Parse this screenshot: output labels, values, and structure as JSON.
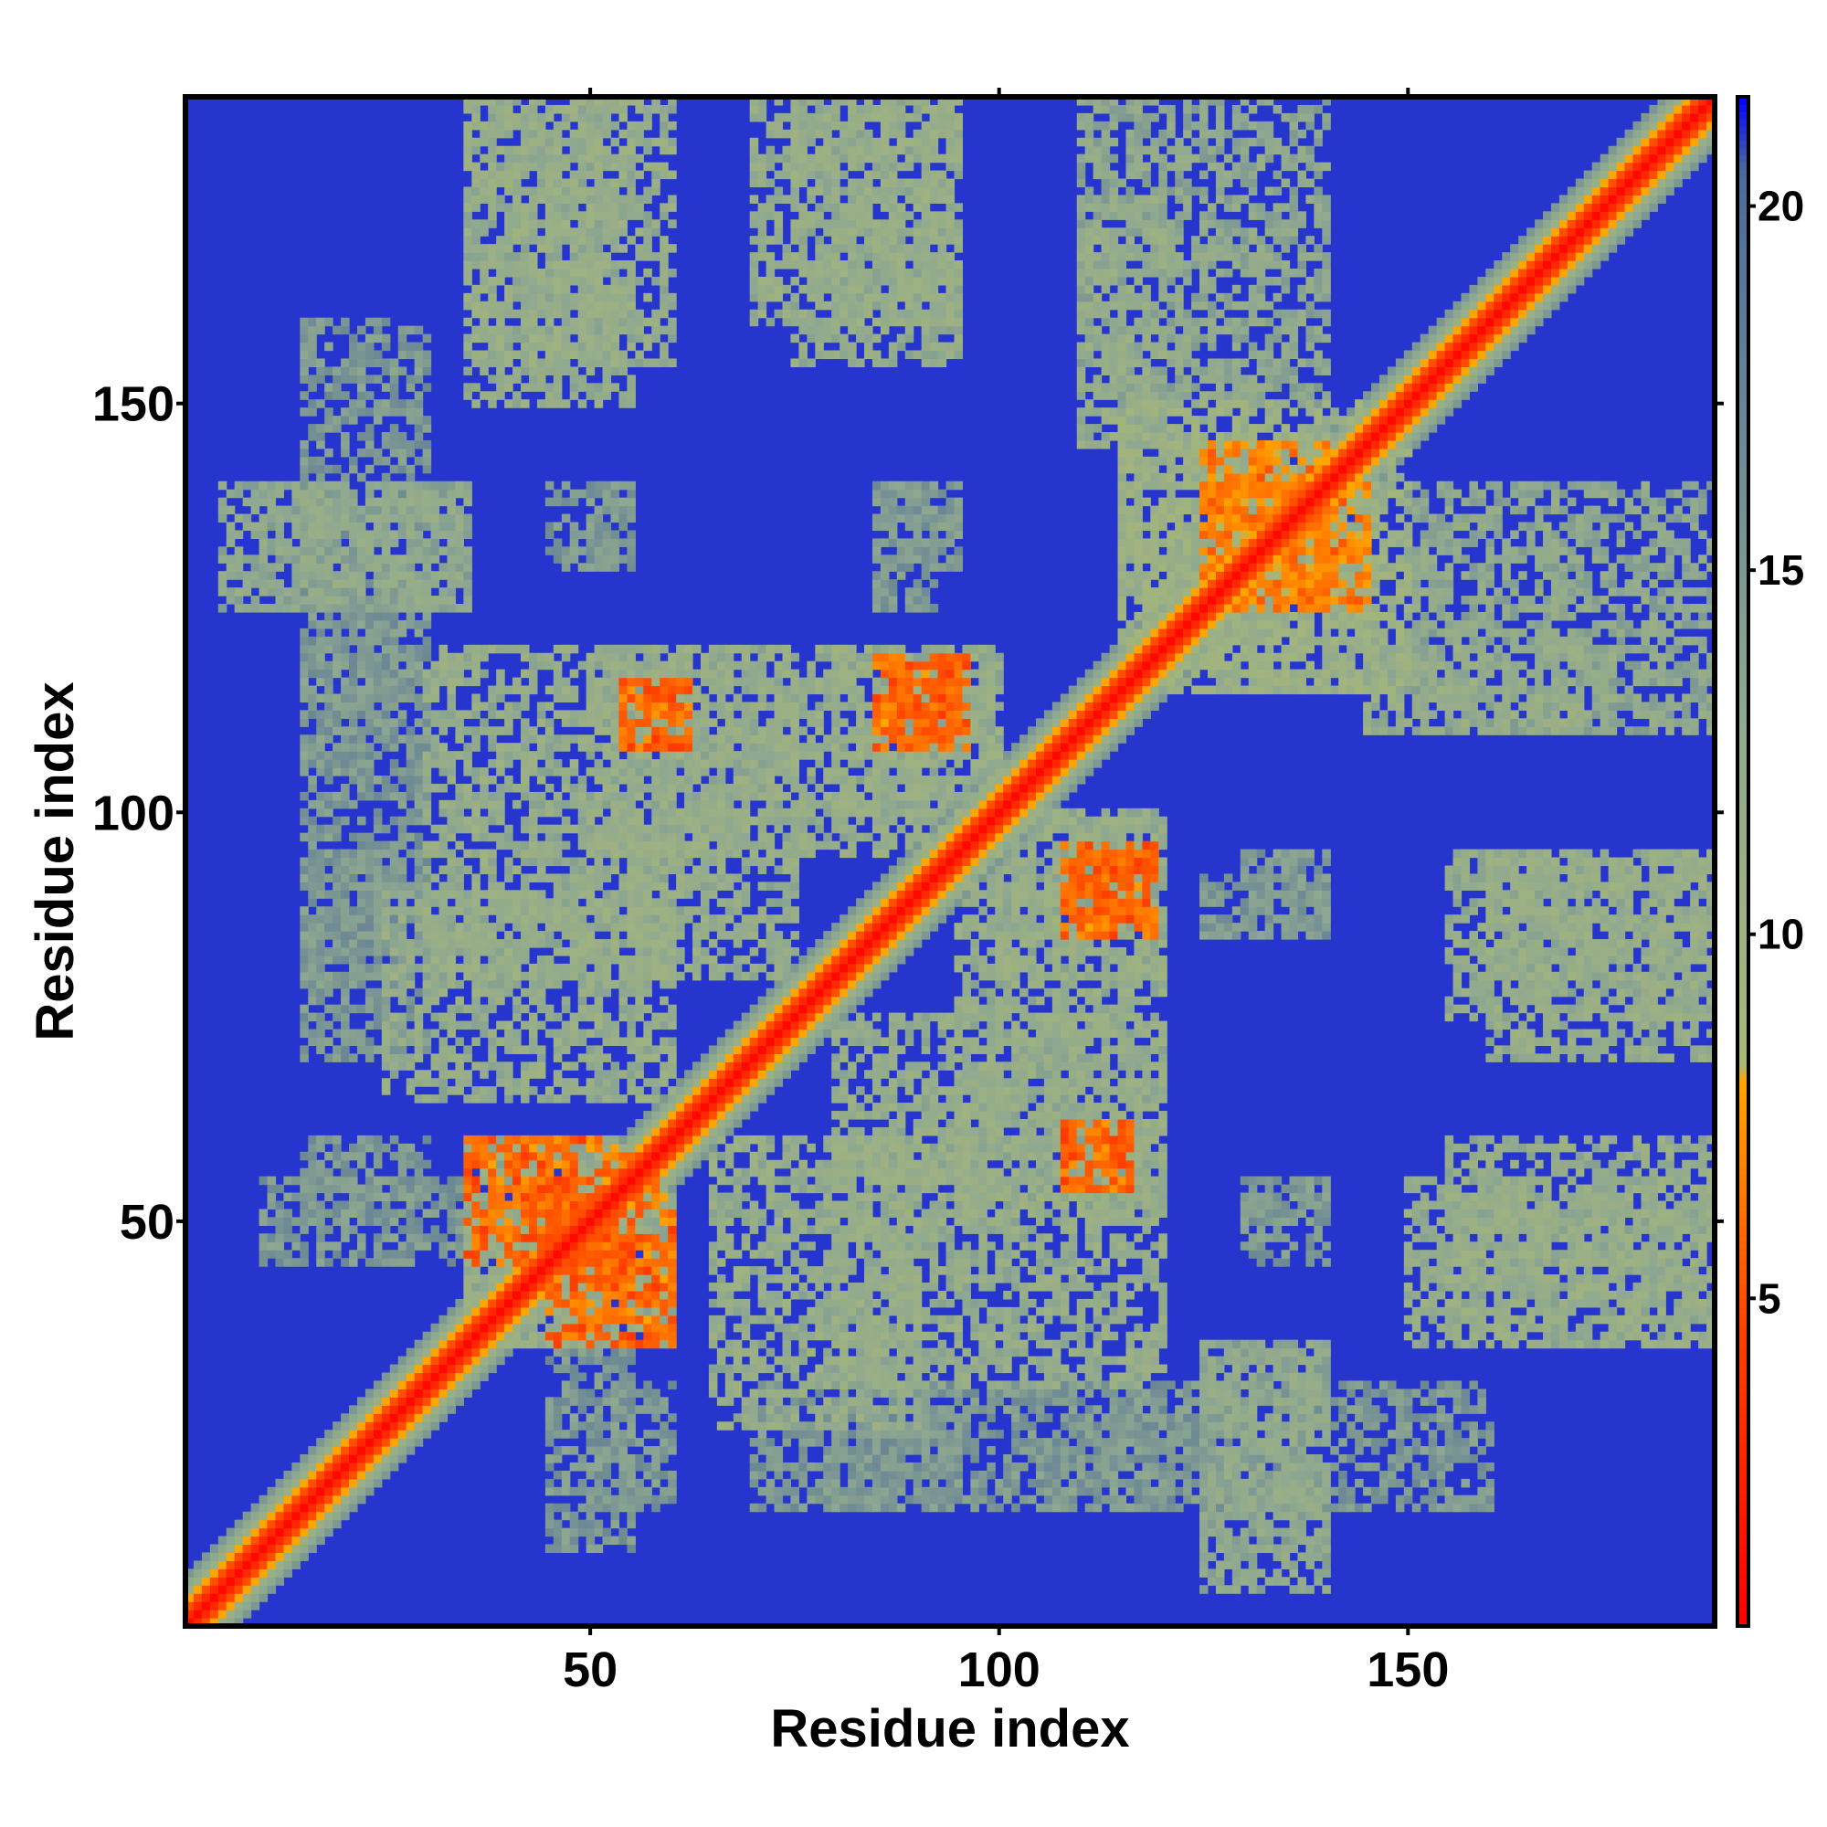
{
  "chart_data": {
    "type": "heatmap",
    "title": "",
    "xlabel": "Residue index",
    "ylabel": "Residue index",
    "n_residues": 187,
    "xlim": [
      1,
      187
    ],
    "ylim": [
      1,
      187
    ],
    "x_ticks": [
      50,
      100,
      150
    ],
    "y_ticks": [
      50,
      100,
      150
    ],
    "colorbar": {
      "range": [
        0.5,
        21.5
      ],
      "ticks": [
        5,
        10,
        15,
        20
      ],
      "colorscale": [
        {
          "value": 0.5,
          "color": "#ff0000"
        },
        {
          "value": 4.5,
          "color": "#ff4000"
        },
        {
          "value": 8.0,
          "color": "#ffa500"
        },
        {
          "value": 8.2,
          "color": "#a8b878"
        },
        {
          "value": 13.0,
          "color": "#8fa890"
        },
        {
          "value": 20.5,
          "color": "#4a6a9a"
        },
        {
          "value": 21.5,
          "color": "#0000ff"
        }
      ]
    },
    "background_value": 21,
    "diagonal_band_values": [
      {
        "offset": 0,
        "value": 1
      },
      {
        "offset": 1,
        "value": 3
      },
      {
        "offset": 2,
        "value": 5
      },
      {
        "offset": 3,
        "value": 8
      },
      {
        "offset": 4,
        "value": 11
      },
      {
        "offset": 5,
        "value": 13
      },
      {
        "offset": 6,
        "value": 15
      }
    ],
    "contact_regions": [
      {
        "x": [
          35,
          60
        ],
        "y": [
          35,
          60
        ],
        "value": 12
      },
      {
        "x": [
          40,
          55
        ],
        "y": [
          45,
          60
        ],
        "value": 6
      },
      {
        "x": [
          45,
          60
        ],
        "y": [
          35,
          48
        ],
        "value": 6
      },
      {
        "x": [
          55,
          75
        ],
        "y": [
          80,
          120
        ],
        "value": 12
      },
      {
        "x": [
          54,
          62
        ],
        "y": [
          108,
          116
        ],
        "value": 6
      },
      {
        "x": [
          86,
          96
        ],
        "y": [
          108,
          118
        ],
        "value": 6
      },
      {
        "x": [
          75,
          100
        ],
        "y": [
          95,
          120
        ],
        "value": 12
      },
      {
        "x": [
          100,
          120
        ],
        "y": [
          80,
          100
        ],
        "value": 12
      },
      {
        "x": [
          108,
          119
        ],
        "y": [
          85,
          96
        ],
        "value": 6
      },
      {
        "x": [
          108,
          116
        ],
        "y": [
          54,
          62
        ],
        "value": 6
      },
      {
        "x": [
          95,
          120
        ],
        "y": [
          50,
          75
        ],
        "value": 12
      },
      {
        "x": [
          65,
          90
        ],
        "y": [
          25,
          60
        ],
        "value": 12
      },
      {
        "x": [
          30,
          60
        ],
        "y": [
          80,
          120
        ],
        "value": 12
      },
      {
        "x": [
          5,
          35
        ],
        "y": [
          125,
          140
        ],
        "value": 13
      },
      {
        "x": [
          15,
          30
        ],
        "y": [
          80,
          120
        ],
        "value": 15
      },
      {
        "x": [
          35,
          60
        ],
        "y": [
          155,
          187
        ],
        "value": 12
      },
      {
        "x": [
          70,
          95
        ],
        "y": [
          160,
          187
        ],
        "value": 12
      },
      {
        "x": [
          110,
          140
        ],
        "y": [
          150,
          187
        ],
        "value": 13
      },
      {
        "x": [
          115,
          145
        ],
        "y": [
          115,
          150
        ],
        "value": 11
      },
      {
        "x": [
          125,
          145
        ],
        "y": [
          125,
          140
        ],
        "value": 7
      },
      {
        "x": [
          145,
          175
        ],
        "y": [
          110,
          120
        ],
        "value": 12
      },
      {
        "x": [
          155,
          187
        ],
        "y": [
          75,
          95
        ],
        "value": 12
      },
      {
        "x": [
          150,
          187
        ],
        "y": [
          35,
          55
        ],
        "value": 12
      },
      {
        "x": [
          125,
          140
        ],
        "y": [
          10,
          35
        ],
        "value": 13
      },
      {
        "x": [
          105,
          160
        ],
        "y": [
          15,
          30
        ],
        "value": 15
      },
      {
        "x": [
          70,
          95
        ],
        "y": [
          15,
          30
        ],
        "value": 15
      },
      {
        "x": [
          50,
          60
        ],
        "y": [
          15,
          30
        ],
        "value": 15
      },
      {
        "x": [
          10,
          35
        ],
        "y": [
          45,
          55
        ],
        "value": 15
      },
      {
        "x": [
          130,
          140
        ],
        "y": [
          45,
          55
        ],
        "value": 15
      },
      {
        "x": [
          130,
          140
        ],
        "y": [
          85,
          95
        ],
        "value": 15
      },
      {
        "x": [
          50,
          55
        ],
        "y": [
          130,
          140
        ],
        "value": 15
      },
      {
        "x": [
          85,
          92
        ],
        "y": [
          125,
          140
        ],
        "value": 15
      }
    ]
  }
}
